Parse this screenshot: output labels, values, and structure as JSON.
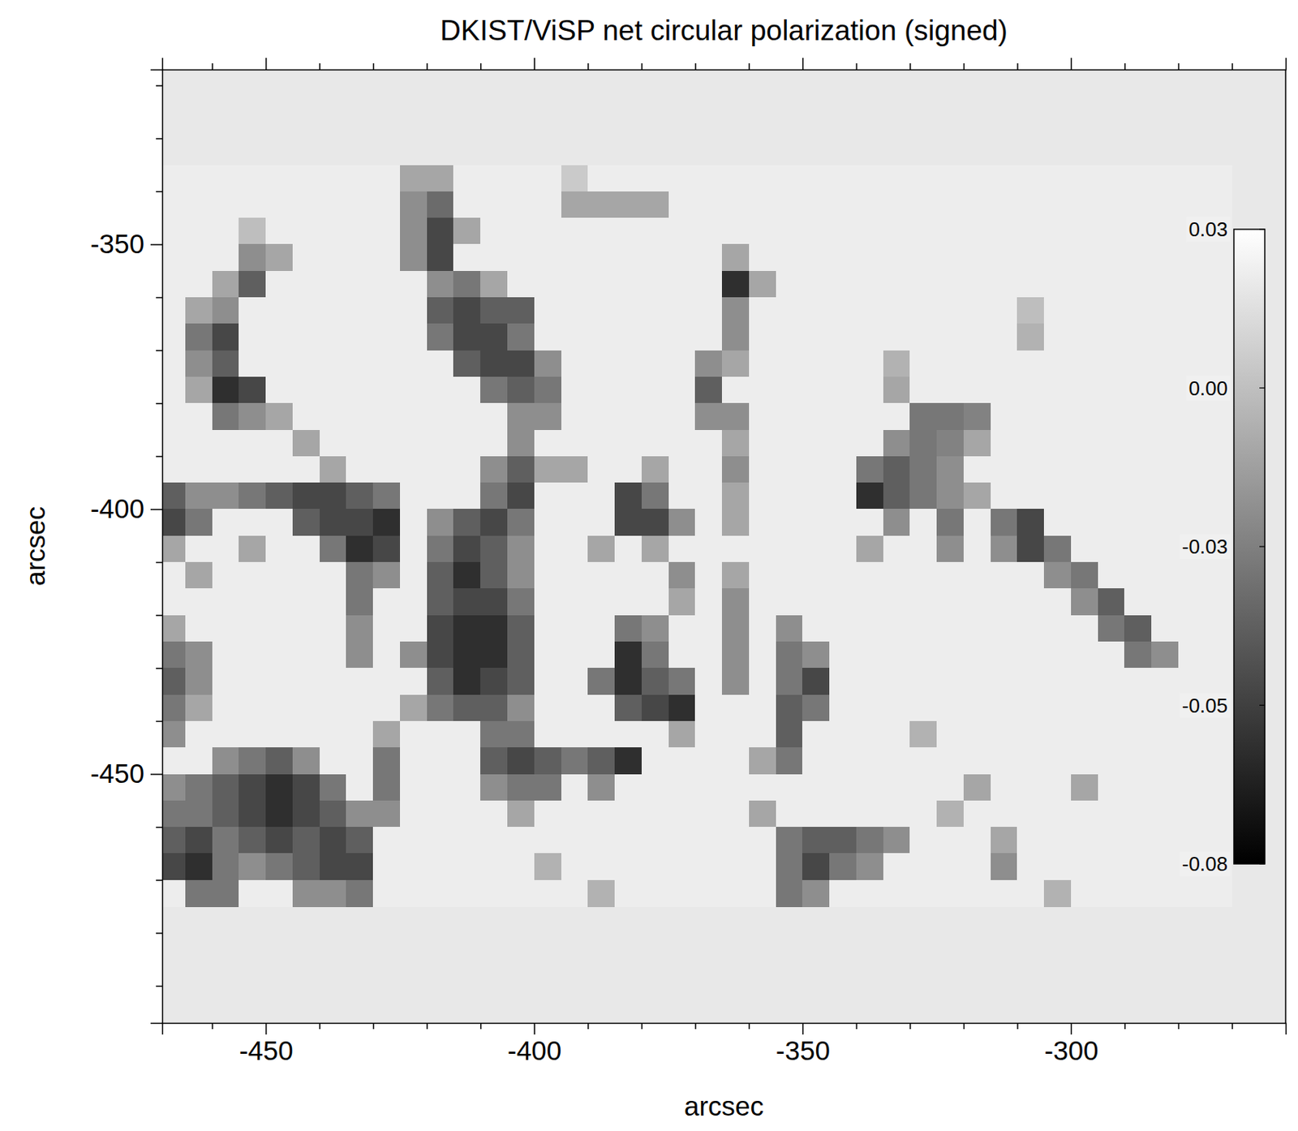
{
  "chart_data": {
    "type": "heatmap",
    "title": "DKIST/ViSP net circular polarization (signed)",
    "x_label": "arcsec",
    "y_label": "arcsec",
    "xlim": [
      -469.3,
      -260
    ],
    "ylim": [
      -497,
      -317
    ],
    "xticks": [
      -450,
      -400,
      -350,
      -300
    ],
    "yticks": [
      -450,
      -400,
      -350
    ],
    "x_minor_ticks": [
      -460,
      -440,
      -430,
      -420,
      -410,
      -390,
      -380,
      -370,
      -360,
      -340,
      -330,
      -320,
      -310,
      -290,
      -280,
      -270
    ],
    "y_minor_ticks": [
      -490,
      -480,
      -470,
      -460,
      -440,
      -430,
      -420,
      -410,
      -390,
      -380,
      -370,
      -360,
      -340,
      -330,
      -320
    ],
    "x": [
      -467.5,
      -462.5,
      -457.5,
      -452.5,
      -447.5,
      -442.5,
      -437.5,
      -432.5,
      -427.5,
      -422.5,
      -417.5,
      -412.5,
      -407.5,
      -402.5,
      -397.5,
      -392.5,
      -387.5,
      -382.5,
      -377.5,
      -372.5,
      -367.5,
      -362.5,
      -357.5,
      -352.5,
      -347.5,
      -342.5,
      -337.5,
      -332.5,
      -327.5,
      -322.5,
      -317.5,
      -312.5,
      -307.5,
      -302.5,
      -297.5,
      -292.5,
      -287.5,
      -282.5,
      -277.5,
      -272.5
    ],
    "y": [
      -337.5,
      -342.5,
      -347.5,
      -352.5,
      -357.5,
      -362.5,
      -367.5,
      -372.5,
      -377.5,
      -382.5,
      -387.5,
      -392.5,
      -397.5,
      -402.5,
      -407.5,
      -412.5,
      -417.5,
      -422.5,
      -427.5,
      -432.5,
      -437.5,
      -442.5,
      -447.5,
      -452.5,
      -457.5,
      -462.5,
      -467.5,
      -472.5
    ],
    "z": [
      [
        0.02,
        0.02,
        0.02,
        0.02,
        0.02,
        0.02,
        0.02,
        0.02,
        0.02,
        -0.01,
        -0.01,
        0.02,
        0.02,
        0.02,
        0.02,
        0.005,
        0.02,
        0.02,
        0.02,
        0.02,
        0.02,
        0.02,
        0.02,
        0.02,
        0.02,
        0.02,
        0.02,
        0.02,
        0.02,
        0.02,
        0.02,
        0.02,
        0.02,
        0.02,
        0.02,
        0.02,
        0.02,
        0.02,
        0.02,
        0.02
      ],
      [
        0.02,
        0.02,
        0.02,
        0.02,
        0.02,
        0.02,
        0.02,
        0.02,
        0.02,
        -0.02,
        -0.035,
        0.02,
        0.02,
        0.02,
        0.02,
        -0.01,
        -0.01,
        -0.01,
        -0.01,
        0.02,
        0.02,
        0.02,
        0.02,
        0.02,
        0.02,
        0.02,
        0.02,
        0.02,
        0.02,
        0.02,
        0.02,
        0.02,
        0.02,
        0.02,
        0.02,
        0.02,
        0.02,
        0.02,
        0.02,
        0.02
      ],
      [
        0.02,
        0.02,
        0.02,
        0,
        0.02,
        0.02,
        0.02,
        0.02,
        0.02,
        -0.02,
        -0.05,
        -0.01,
        0.02,
        0.02,
        0.02,
        0.02,
        0.02,
        0.02,
        0.02,
        0.02,
        0.02,
        0.02,
        0.02,
        0.02,
        0.02,
        0.02,
        0.02,
        0.02,
        0.02,
        0.02,
        0.02,
        0.02,
        0.02,
        0.02,
        0.02,
        0.02,
        0.02,
        0.02,
        0.02,
        0.02
      ],
      [
        0.02,
        0.02,
        0.02,
        -0.02,
        -0.01,
        0.02,
        0.02,
        0.02,
        0.02,
        -0.02,
        -0.05,
        0.02,
        0.02,
        0.02,
        0.02,
        0.02,
        0.02,
        0.02,
        0.02,
        0.02,
        0.02,
        -0.01,
        0.02,
        0.02,
        0.02,
        0.02,
        0.02,
        0.02,
        0.02,
        0.02,
        0.02,
        0.02,
        0.02,
        0.02,
        0.02,
        0.02,
        0.02,
        0.02,
        0.02,
        0.02
      ],
      [
        0.02,
        0.02,
        -0.01,
        -0.04,
        0.02,
        0.02,
        0.02,
        0.02,
        0.02,
        0.02,
        -0.02,
        -0.03,
        -0.01,
        0.02,
        0.02,
        0.02,
        0.02,
        0.02,
        0.02,
        0.02,
        0.02,
        -0.06,
        -0.01,
        0.02,
        0.02,
        0.02,
        0.02,
        0.02,
        0.02,
        0.02,
        0.02,
        0.02,
        0.02,
        0.02,
        0.02,
        0.02,
        0.02,
        0.02,
        0.02,
        0.02
      ],
      [
        0.02,
        -0.01,
        -0.02,
        0.02,
        0.02,
        0.02,
        0.02,
        0.02,
        0.02,
        0.02,
        -0.04,
        -0.05,
        -0.04,
        -0.04,
        0.02,
        0.02,
        0.02,
        0.02,
        0.02,
        0.02,
        0.02,
        -0.02,
        0.02,
        0.02,
        0.02,
        0.02,
        0.02,
        0.02,
        0.02,
        0.02,
        0.02,
        0.02,
        0,
        0.02,
        0.02,
        0.02,
        0.02,
        0.02,
        0.02,
        0.02
      ],
      [
        0.02,
        -0.03,
        -0.05,
        0.02,
        0.02,
        0.02,
        0.02,
        0.02,
        0.02,
        0.02,
        -0.03,
        -0.05,
        -0.05,
        -0.03,
        0.02,
        0.02,
        0.02,
        0.02,
        0.02,
        0.02,
        0.02,
        -0.02,
        0.02,
        0.02,
        0.02,
        0.02,
        0.02,
        0.02,
        0.02,
        0.02,
        0.02,
        0.02,
        -0.005,
        0.02,
        0.02,
        0.02,
        0.02,
        0.02,
        0.02,
        0.02
      ],
      [
        0.02,
        -0.02,
        -0.04,
        0.02,
        0.02,
        0.02,
        0.02,
        0.02,
        0.02,
        0.02,
        0.02,
        -0.04,
        -0.05,
        -0.05,
        -0.02,
        0.02,
        0.02,
        0.02,
        0.02,
        0.02,
        -0.02,
        -0.01,
        0.02,
        0.02,
        0.02,
        0.02,
        0.02,
        -0.005,
        0.02,
        0.02,
        0.02,
        0.02,
        0.02,
        0.02,
        0.02,
        0.02,
        0.02,
        0.02,
        0.02,
        0.02
      ],
      [
        0.02,
        -0.01,
        -0.06,
        -0.05,
        0.02,
        0.02,
        0.02,
        0.02,
        0.02,
        0.02,
        0.02,
        0.02,
        -0.03,
        -0.04,
        -0.03,
        0.02,
        0.02,
        0.02,
        0.02,
        0.02,
        -0.04,
        0.02,
        0.02,
        0.02,
        0.02,
        0.02,
        0.02,
        -0.01,
        0.02,
        0.02,
        0.02,
        0.02,
        0.02,
        0.02,
        0.02,
        0.02,
        0.02,
        0.02,
        0.02,
        0.02
      ],
      [
        0.02,
        0.02,
        -0.03,
        -0.02,
        -0.01,
        0.02,
        0.02,
        0.02,
        0.02,
        0.02,
        0.02,
        0.02,
        0.02,
        -0.02,
        -0.02,
        0.02,
        0.02,
        0.02,
        0.02,
        0.02,
        -0.02,
        -0.02,
        0.02,
        0.02,
        0.02,
        0.02,
        0.02,
        0.02,
        -0.03,
        -0.03,
        -0.025,
        0.02,
        0.02,
        0.02,
        0.02,
        0.02,
        0.02,
        0.02,
        0.02,
        0.02
      ],
      [
        0.02,
        0.02,
        0.02,
        0.02,
        0.02,
        -0.01,
        0.02,
        0.02,
        0.02,
        0.02,
        0.02,
        0.02,
        0.02,
        -0.02,
        0.02,
        0.02,
        0.02,
        0.02,
        0.02,
        0.02,
        0.02,
        -0.01,
        0.02,
        0.02,
        0.02,
        0.02,
        0.02,
        -0.02,
        -0.03,
        -0.025,
        -0.01,
        0.02,
        0.02,
        0.02,
        0.02,
        0.02,
        0.02,
        0.02,
        0.02,
        0.02
      ],
      [
        0.02,
        0.02,
        0.02,
        0.02,
        0.02,
        0.02,
        -0.01,
        0.02,
        0.02,
        0.02,
        0.02,
        0.02,
        -0.02,
        -0.04,
        -0.01,
        -0.01,
        0.02,
        0.02,
        -0.01,
        0.02,
        0.02,
        -0.02,
        0.02,
        0.02,
        0.02,
        0.02,
        -0.03,
        -0.04,
        -0.03,
        -0.02,
        0.02,
        0.02,
        0.02,
        0.02,
        0.02,
        0.02,
        0.02,
        0.02,
        0.02,
        0.02
      ],
      [
        -0.04,
        -0.02,
        -0.02,
        -0.03,
        -0.04,
        -0.05,
        -0.05,
        -0.04,
        -0.03,
        0.02,
        0.02,
        0.02,
        -0.03,
        -0.05,
        0.02,
        0.02,
        0.02,
        -0.05,
        -0.03,
        0.02,
        0.02,
        -0.01,
        0.02,
        0.02,
        0.02,
        0.02,
        -0.06,
        -0.04,
        -0.03,
        -0.02,
        -0.01,
        0.02,
        0.02,
        0.02,
        0.02,
        0.02,
        0.02,
        0.02,
        0.02,
        0.02
      ],
      [
        -0.05,
        -0.03,
        0.02,
        0.02,
        0.02,
        -0.04,
        -0.05,
        -0.05,
        -0.06,
        0.02,
        -0.02,
        -0.04,
        -0.05,
        -0.03,
        0.02,
        0.02,
        0.02,
        -0.05,
        -0.05,
        -0.02,
        0.02,
        -0.01,
        0.02,
        0.02,
        0.02,
        0.02,
        0.02,
        -0.02,
        0.02,
        -0.03,
        0.02,
        -0.03,
        -0.05,
        0.02,
        0.02,
        0.02,
        0.02,
        0.02,
        0.02,
        0.02
      ],
      [
        -0.01,
        0.02,
        0.02,
        -0.01,
        0.02,
        0.02,
        -0.03,
        -0.06,
        -0.05,
        0.02,
        -0.03,
        -0.05,
        -0.04,
        -0.02,
        0.02,
        0.02,
        -0.01,
        0.02,
        -0.01,
        0.02,
        0.02,
        0.02,
        0.02,
        0.02,
        0.02,
        0.02,
        -0.01,
        0.02,
        0.02,
        -0.02,
        0.02,
        -0.02,
        -0.05,
        -0.03,
        0.02,
        0.02,
        0.02,
        0.02,
        0.02,
        0.02
      ],
      [
        0.02,
        -0.01,
        0.02,
        0.02,
        0.02,
        0.02,
        0.02,
        -0.03,
        -0.02,
        0.02,
        -0.04,
        -0.06,
        -0.04,
        -0.02,
        0.02,
        0.02,
        0.02,
        0.02,
        0.02,
        -0.02,
        0.02,
        -0.01,
        0.02,
        0.02,
        0.02,
        0.02,
        0.02,
        0.02,
        0.02,
        0.02,
        0.02,
        0.02,
        0.02,
        -0.02,
        -0.03,
        0.02,
        0.02,
        0.02,
        0.02,
        0.02
      ],
      [
        0.02,
        0.02,
        0.02,
        0.02,
        0.02,
        0.02,
        0.02,
        -0.03,
        0.02,
        0.02,
        -0.04,
        -0.05,
        -0.05,
        -0.03,
        0.02,
        0.02,
        0.02,
        0.02,
        0.02,
        -0.01,
        0.02,
        -0.02,
        0.02,
        0.02,
        0.02,
        0.02,
        0.02,
        0.02,
        0.02,
        0.02,
        0.02,
        0.02,
        0.02,
        0.02,
        -0.02,
        -0.04,
        0.02,
        0.02,
        0.02,
        0.02
      ],
      [
        -0.01,
        0.02,
        0.02,
        0.02,
        0.02,
        0.02,
        0.02,
        -0.02,
        0.02,
        0.02,
        -0.05,
        -0.06,
        -0.06,
        -0.04,
        0.02,
        0.02,
        0.02,
        -0.03,
        -0.02,
        0.02,
        0.02,
        -0.02,
        0.02,
        -0.02,
        0.02,
        0.02,
        0.02,
        0.02,
        0.02,
        0.02,
        0.02,
        0.02,
        0.02,
        0.02,
        0.02,
        -0.03,
        -0.04,
        0.02,
        0.02,
        0.02
      ],
      [
        -0.03,
        -0.02,
        0.02,
        0.02,
        0.02,
        0.02,
        0.02,
        -0.02,
        0.02,
        -0.02,
        -0.05,
        -0.06,
        -0.06,
        -0.04,
        0.02,
        0.02,
        0.02,
        -0.06,
        -0.03,
        0.02,
        0.02,
        -0.02,
        0.02,
        -0.03,
        -0.02,
        0.02,
        0.02,
        0.02,
        0.02,
        0.02,
        0.02,
        0.02,
        0.02,
        0.02,
        0.02,
        0.02,
        -0.03,
        -0.02,
        0.02,
        0.02
      ],
      [
        -0.04,
        -0.02,
        0.02,
        0.02,
        0.02,
        0.02,
        0.02,
        0.02,
        0.02,
        0.02,
        -0.04,
        -0.06,
        -0.05,
        -0.04,
        0.02,
        0.02,
        -0.03,
        -0.06,
        -0.04,
        -0.03,
        0.02,
        -0.02,
        0.02,
        -0.03,
        -0.05,
        0.02,
        0.02,
        0.02,
        0.02,
        0.02,
        0.02,
        0.02,
        0.02,
        0.02,
        0.02,
        0.02,
        0.02,
        0.02,
        0.02,
        0.02
      ],
      [
        -0.03,
        -0.01,
        0.02,
        0.02,
        0.02,
        0.02,
        0.02,
        0.02,
        0.02,
        -0.01,
        -0.03,
        -0.04,
        -0.04,
        -0.02,
        0.02,
        0.02,
        0.02,
        -0.04,
        -0.05,
        -0.06,
        0.02,
        0.02,
        0.02,
        -0.04,
        -0.03,
        0.02,
        0.02,
        0.02,
        0.02,
        0.02,
        0.02,
        0.02,
        0.02,
        0.02,
        0.02,
        0.02,
        0.02,
        0.02,
        0.02,
        0.02
      ],
      [
        -0.02,
        0.02,
        0.02,
        0.02,
        0.02,
        0.02,
        0.02,
        0.02,
        -0.01,
        0.02,
        0.02,
        0.02,
        -0.03,
        -0.03,
        0.02,
        0.02,
        0.02,
        0.02,
        0.02,
        -0.01,
        0.02,
        0.02,
        0.02,
        -0.04,
        0.02,
        0.02,
        0.02,
        0.02,
        -0.005,
        0.02,
        0.02,
        0.02,
        0.02,
        0.02,
        0.02,
        0.02,
        0.02,
        0.02,
        0.02,
        0.02
      ],
      [
        0.02,
        0.02,
        -0.02,
        -0.03,
        -0.04,
        -0.02,
        0.02,
        0.02,
        -0.03,
        0.02,
        0.02,
        0.02,
        -0.04,
        -0.05,
        -0.04,
        -0.03,
        -0.04,
        -0.06,
        0.02,
        0.02,
        0.02,
        0.02,
        -0.01,
        -0.03,
        0.02,
        0.02,
        0.02,
        0.02,
        0.02,
        0.02,
        0.02,
        0.02,
        0.02,
        0.02,
        0.02,
        0.02,
        0.02,
        0.02,
        0.02,
        0.02
      ],
      [
        -0.02,
        -0.03,
        -0.04,
        -0.05,
        -0.06,
        -0.05,
        -0.03,
        0.02,
        -0.03,
        0.02,
        0.02,
        0.02,
        -0.02,
        -0.03,
        -0.03,
        0.02,
        -0.02,
        0.02,
        0.02,
        0.02,
        0.02,
        0.02,
        0.02,
        0.02,
        0.02,
        0.02,
        0.02,
        0.02,
        0.02,
        0.02,
        -0.01,
        0.02,
        0.02,
        0.02,
        -0.01,
        0.02,
        0.02,
        0.02,
        0.02,
        0.02
      ],
      [
        -0.03,
        -0.03,
        -0.04,
        -0.05,
        -0.06,
        -0.05,
        -0.04,
        -0.02,
        -0.02,
        0.02,
        0.02,
        0.02,
        0.02,
        -0.01,
        0.02,
        0.02,
        0.02,
        0.02,
        0.02,
        0.02,
        0.02,
        0.02,
        -0.01,
        0.02,
        0.02,
        0.02,
        0.02,
        0.02,
        0.02,
        -0.005,
        0.02,
        0.02,
        0.02,
        0.02,
        0.02,
        0.02,
        0.02,
        0.02,
        0.02,
        0.02
      ],
      [
        -0.04,
        -0.05,
        -0.03,
        -0.04,
        -0.05,
        -0.04,
        -0.05,
        -0.04,
        0.02,
        0.02,
        0.02,
        0.02,
        0.02,
        0.02,
        0.02,
        0.02,
        0.02,
        0.02,
        0.02,
        0.02,
        0.02,
        0.02,
        0.02,
        -0.03,
        -0.04,
        -0.04,
        -0.03,
        -0.02,
        0.02,
        0.02,
        0.02,
        -0.01,
        0.02,
        0.02,
        0.02,
        0.02,
        0.02,
        0.02,
        0.02,
        0.02
      ],
      [
        -0.05,
        -0.06,
        -0.03,
        -0.02,
        -0.03,
        -0.04,
        -0.05,
        -0.05,
        0.02,
        0.02,
        0.02,
        0.02,
        0.02,
        0.02,
        -0.005,
        0.02,
        0.02,
        0.02,
        0.02,
        0.02,
        0.02,
        0.02,
        0.02,
        -0.03,
        -0.05,
        -0.03,
        -0.02,
        0.02,
        0.02,
        0.02,
        0.02,
        -0.02,
        0.02,
        0.02,
        0.02,
        0.02,
        0.02,
        0.02,
        0.02,
        0.02
      ],
      [
        0.02,
        -0.03,
        -0.03,
        0.02,
        0.02,
        -0.02,
        -0.02,
        -0.03,
        0.02,
        0.02,
        0.02,
        0.02,
        0.02,
        0.02,
        0.02,
        0.02,
        -0.005,
        0.02,
        0.02,
        0.02,
        0.02,
        0.02,
        0.02,
        -0.03,
        -0.02,
        0.02,
        0.02,
        0.02,
        0.02,
        0.02,
        0.02,
        0.02,
        0.02,
        -0.005,
        0.02,
        0.02,
        0.02,
        0.02,
        0.02,
        0.02
      ]
    ],
    "colorbar": {
      "range": [
        -0.08,
        0.0275
      ],
      "ticks": [
        {
          "value": 0.0275,
          "label": "0.03"
        },
        {
          "value": 0.000625,
          "label": "0.00"
        },
        {
          "value": -0.02625,
          "label": "-0.03"
        },
        {
          "value": -0.053125,
          "label": "-0.05"
        },
        {
          "value": -0.08,
          "label": "-0.08"
        }
      ]
    }
  }
}
